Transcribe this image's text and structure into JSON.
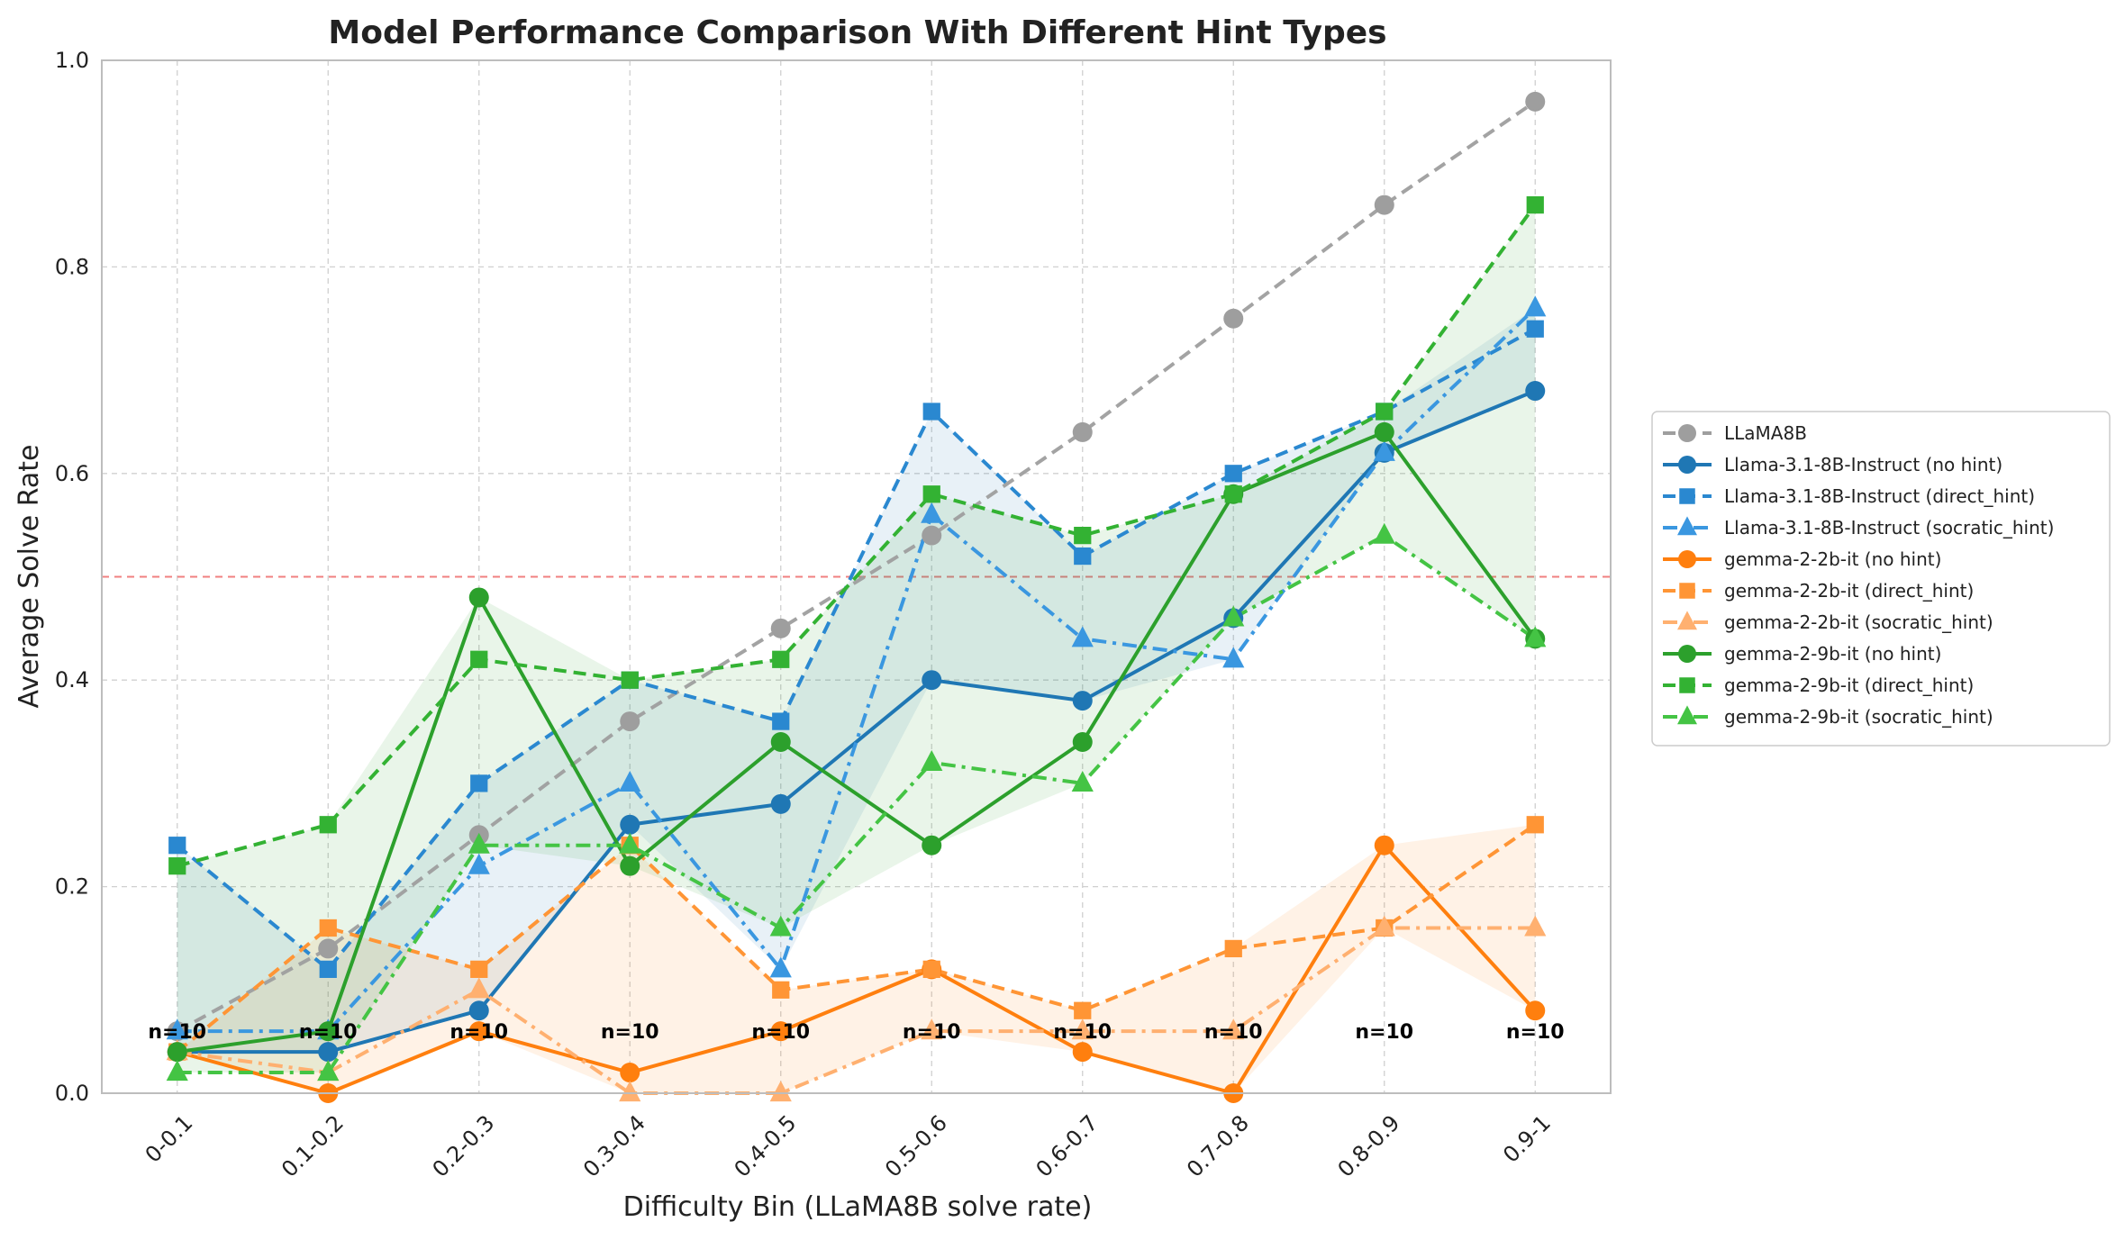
{
  "chart_data": {
    "type": "line",
    "title": "Model Performance Comparison With Different Hint Types",
    "xlabel": "Difficulty Bin (LLaMA8B solve rate)",
    "ylabel": "Average Solve Rate",
    "ylim": [
      0,
      1.0
    ],
    "yticks": [
      "0.0",
      "0.2",
      "0.4",
      "0.6",
      "0.8",
      "1.0"
    ],
    "categories": [
      "0-0.1",
      "0.1-0.2",
      "0.2-0.3",
      "0.3-0.4",
      "0.4-0.5",
      "0.5-0.6",
      "0.6-0.7",
      "0.7-0.8",
      "0.8-0.9",
      "0.9-1"
    ],
    "annotations": [
      "n=10",
      "n=10",
      "n=10",
      "n=10",
      "n=10",
      "n=10",
      "n=10",
      "n=10",
      "n=10",
      "n=10"
    ],
    "reference_line": {
      "y": 0.5,
      "color": "#f08080",
      "style": "dashed"
    },
    "grid": true,
    "legend_position": "right",
    "series": [
      {
        "name": "LLaMA8B",
        "color": "#9e9e9e",
        "marker": "circle",
        "dash": "dashed",
        "values": [
          0.06,
          0.14,
          0.25,
          0.36,
          0.45,
          0.54,
          0.64,
          0.75,
          0.86,
          0.96
        ]
      },
      {
        "name": "Llama-3.1-8B-Instruct (no hint)",
        "color": "#1f77b4",
        "marker": "circle",
        "dash": "solid",
        "values": [
          0.04,
          0.04,
          0.08,
          0.26,
          0.28,
          0.4,
          0.38,
          0.46,
          0.62,
          0.68
        ]
      },
      {
        "name": "Llama-3.1-8B-Instruct (direct_hint)",
        "color": "#2a88d0",
        "marker": "square",
        "dash": "dashed",
        "values": [
          0.24,
          0.12,
          0.3,
          0.4,
          0.36,
          0.66,
          0.52,
          0.6,
          0.66,
          0.74
        ]
      },
      {
        "name": "Llama-3.1-8B-Instruct (socratic_hint)",
        "color": "#3a97e0",
        "marker": "triangle",
        "dash": "dashdot",
        "values": [
          0.06,
          0.06,
          0.22,
          0.3,
          0.12,
          0.56,
          0.44,
          0.42,
          0.62,
          0.76
        ]
      },
      {
        "name": "gemma-2-2b-it (no hint)",
        "color": "#ff7f0e",
        "marker": "circle",
        "dash": "solid",
        "values": [
          0.04,
          0.0,
          0.06,
          0.02,
          0.06,
          0.12,
          0.04,
          0.0,
          0.24,
          0.08
        ]
      },
      {
        "name": "gemma-2-2b-it (direct_hint)",
        "color": "#ff9535",
        "marker": "square",
        "dash": "dashed",
        "values": [
          0.04,
          0.16,
          0.12,
          0.24,
          0.1,
          0.12,
          0.08,
          0.14,
          0.16,
          0.26
        ]
      },
      {
        "name": "gemma-2-2b-it (socratic_hint)",
        "color": "#ffb070",
        "marker": "triangle",
        "dash": "dashdot",
        "values": [
          0.04,
          0.02,
          0.1,
          0.0,
          0.0,
          0.06,
          0.06,
          0.06,
          0.16,
          0.16
        ]
      },
      {
        "name": "gemma-2-9b-it (no hint)",
        "color": "#2ca02c",
        "marker": "circle",
        "dash": "solid",
        "values": [
          0.04,
          0.06,
          0.48,
          0.22,
          0.34,
          0.24,
          0.34,
          0.58,
          0.64,
          0.44
        ]
      },
      {
        "name": "gemma-2-9b-it (direct_hint)",
        "color": "#33b233",
        "marker": "square",
        "dash": "dashed",
        "values": [
          0.22,
          0.26,
          0.42,
          0.4,
          0.42,
          0.58,
          0.54,
          0.58,
          0.66,
          0.86
        ]
      },
      {
        "name": "gemma-2-9b-it (socratic_hint)",
        "color": "#44c444",
        "marker": "triangle",
        "dash": "dashdot",
        "values": [
          0.02,
          0.02,
          0.24,
          0.24,
          0.16,
          0.32,
          0.3,
          0.46,
          0.54,
          0.44
        ]
      }
    ],
    "shaded_bands": [
      {
        "color": "#1f77b4",
        "series": [
          "Llama-3.1-8B-Instruct (no hint)",
          "Llama-3.1-8B-Instruct (direct_hint)",
          "Llama-3.1-8B-Instruct (socratic_hint)"
        ]
      },
      {
        "color": "#ff7f0e",
        "series": [
          "gemma-2-2b-it (no hint)",
          "gemma-2-2b-it (direct_hint)",
          "gemma-2-2b-it (socratic_hint)"
        ]
      },
      {
        "color": "#2ca02c",
        "series": [
          "gemma-2-9b-it (no hint)",
          "gemma-2-9b-it (direct_hint)",
          "gemma-2-9b-it (socratic_hint)"
        ]
      }
    ]
  }
}
